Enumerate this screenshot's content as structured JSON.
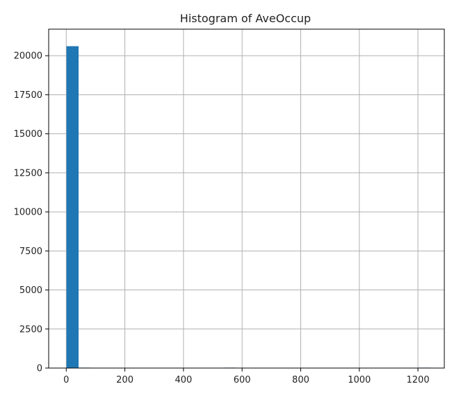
{
  "colors": {
    "bar": "#1f77b4",
    "grid": "#b0b0b0",
    "axes": "#000000",
    "text": "#222222",
    "background": "#ffffff"
  },
  "chart_data": {
    "type": "bar",
    "title": "Histogram of AveOccup",
    "xlabel": "",
    "ylabel": "",
    "grid": true,
    "xlim": [
      -60,
      1290
    ],
    "ylim": [
      0,
      21700
    ],
    "x_ticks": [
      0,
      200,
      400,
      600,
      800,
      1000,
      1200
    ],
    "x_tick_labels": [
      "0",
      "200",
      "400",
      "600",
      "800",
      "1000",
      "1200"
    ],
    "y_ticks": [
      0,
      2500,
      5000,
      7500,
      10000,
      12500,
      15000,
      17500,
      20000
    ],
    "y_tick_labels": [
      "0",
      "2500",
      "5000",
      "7500",
      "10000",
      "12500",
      "15000",
      "17500",
      "20000"
    ],
    "bins": [
      {
        "x0": 0.69,
        "x1": 42.1,
        "count": 20610
      },
      {
        "x0": 42.1,
        "x1": 83.5,
        "count": 10
      },
      {
        "x0": 83.5,
        "x1": 124.9,
        "count": 0
      },
      {
        "x0": 124.9,
        "x1": 166.3,
        "count": 0
      },
      {
        "x0": 166.3,
        "x1": 207.7,
        "count": 0
      },
      {
        "x0": 207.7,
        "x1": 249.1,
        "count": 0
      },
      {
        "x0": 249.1,
        "x1": 290.5,
        "count": 0
      },
      {
        "x0": 290.5,
        "x1": 331.9,
        "count": 0
      },
      {
        "x0": 331.9,
        "x1": 373.3,
        "count": 0
      },
      {
        "x0": 373.3,
        "x1": 414.7,
        "count": 0
      },
      {
        "x0": 414.7,
        "x1": 456.1,
        "count": 0
      },
      {
        "x0": 456.1,
        "x1": 497.5,
        "count": 0
      },
      {
        "x0": 497.5,
        "x1": 538.9,
        "count": 0
      },
      {
        "x0": 538.9,
        "x1": 580.3,
        "count": 1
      },
      {
        "x0": 580.3,
        "x1": 621.7,
        "count": 0
      },
      {
        "x0": 621.7,
        "x1": 663.1,
        "count": 0
      },
      {
        "x0": 663.1,
        "x1": 704.5,
        "count": 0
      },
      {
        "x0": 704.5,
        "x1": 745.9,
        "count": 0
      },
      {
        "x0": 745.9,
        "x1": 787.3,
        "count": 0
      },
      {
        "x0": 787.3,
        "x1": 828.7,
        "count": 0
      },
      {
        "x0": 828.7,
        "x1": 870.1,
        "count": 0
      },
      {
        "x0": 870.1,
        "x1": 911.5,
        "count": 0
      },
      {
        "x0": 911.5,
        "x1": 952.9,
        "count": 0
      },
      {
        "x0": 952.9,
        "x1": 994.3,
        "count": 0
      },
      {
        "x0": 994.3,
        "x1": 1035.7,
        "count": 0
      },
      {
        "x0": 1035.7,
        "x1": 1077.1,
        "count": 0
      },
      {
        "x0": 1077.1,
        "x1": 1118.5,
        "count": 0
      },
      {
        "x0": 1118.5,
        "x1": 1159.9,
        "count": 0
      },
      {
        "x0": 1159.9,
        "x1": 1201.3,
        "count": 0
      },
      {
        "x0": 1201.3,
        "x1": 1243.3,
        "count": 1
      }
    ]
  }
}
